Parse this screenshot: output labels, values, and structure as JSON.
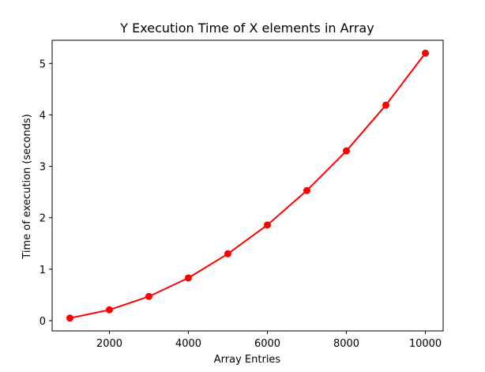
{
  "chart_data": {
    "type": "line",
    "title": "Y Execution Time of X elements in Array",
    "xlabel": "Array Entries",
    "ylabel": "Time of execution (seconds)",
    "xlim": [
      550,
      10450
    ],
    "ylim": [
      -0.2,
      5.45
    ],
    "xticks": [
      2000,
      4000,
      6000,
      8000,
      10000
    ],
    "yticks": [
      0,
      1,
      2,
      3,
      4,
      5
    ],
    "grid": false,
    "marker": "circle",
    "color": "#ff0000",
    "series": [
      {
        "x": [
          1000,
          2000,
          3000,
          4000,
          5000,
          6000,
          7000,
          8000,
          9000,
          10000
        ],
        "y": [
          0.05,
          0.21,
          0.47,
          0.83,
          1.3,
          1.86,
          2.53,
          3.3,
          4.19,
          5.2
        ]
      }
    ]
  }
}
